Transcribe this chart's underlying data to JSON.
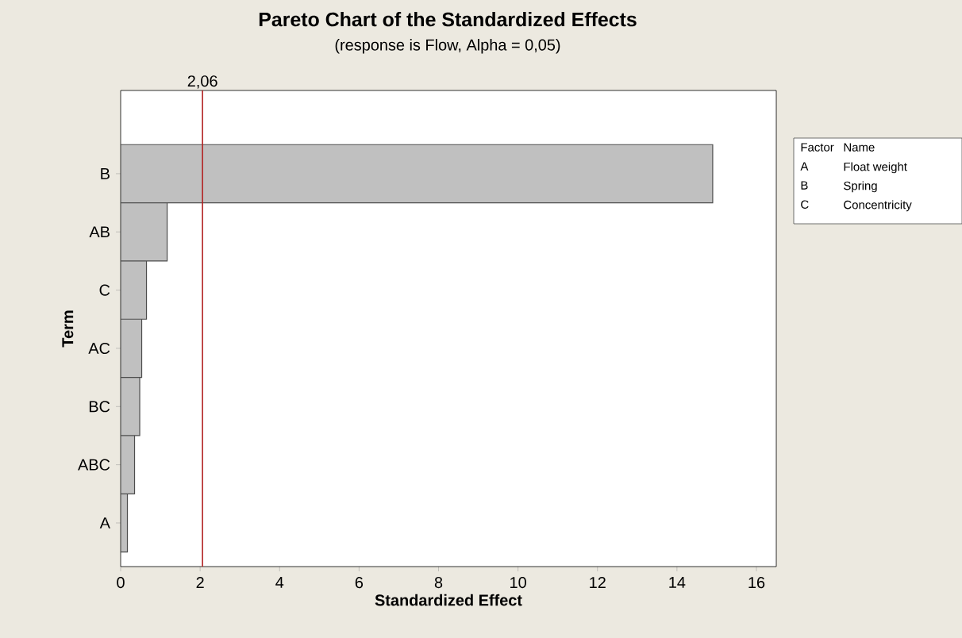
{
  "chart_data": {
    "type": "bar",
    "orientation": "horizontal",
    "title": "Pareto Chart of the Standardized Effects",
    "subtitle": "(response is Flow, Alpha = 0,05)",
    "xlabel": "Standardized Effect",
    "ylabel": "Term",
    "categories": [
      "B",
      "AB",
      "C",
      "AC",
      "BC",
      "ABC",
      "A"
    ],
    "values": [
      14.9,
      1.17,
      0.65,
      0.53,
      0.48,
      0.35,
      0.17
    ],
    "color": "#c0c0c0",
    "xlim": [
      0,
      16.5
    ],
    "xticks": [
      0,
      2,
      4,
      6,
      8,
      10,
      12,
      14,
      16
    ],
    "ref_lines": [
      {
        "axis": "x",
        "value": 2.06,
        "label": "2,06",
        "color": "#b22222"
      }
    ],
    "annotations": [
      "Factor",
      "Name",
      "A",
      "Float weight",
      "B",
      "Spring",
      "C",
      "Concentricity"
    ]
  }
}
